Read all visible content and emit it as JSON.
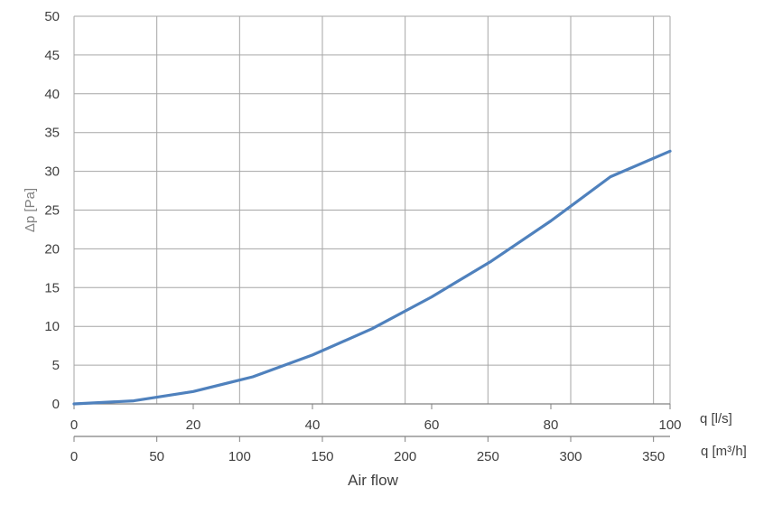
{
  "chart_data": {
    "type": "line",
    "title": "",
    "ylabel": "Δp [Pa]",
    "xlabel": "Air flow",
    "ylim": [
      0,
      50
    ],
    "yticks": [
      0,
      5,
      10,
      15,
      20,
      25,
      30,
      35,
      40,
      45,
      50
    ],
    "grid": true,
    "x_axes": [
      {
        "unit_label": "q [l/s]",
        "range": [
          0,
          100
        ],
        "ticks": [
          0,
          20,
          40,
          60,
          80,
          100
        ]
      },
      {
        "unit_label": "q [m³/h]",
        "range": [
          0,
          360
        ],
        "ticks": [
          0,
          50,
          100,
          150,
          200,
          250,
          300,
          350
        ]
      }
    ],
    "series": [
      {
        "color": "#4f81bd",
        "x": [
          0,
          10,
          20,
          30,
          40,
          50,
          60,
          70,
          80,
          90,
          100
        ],
        "y": [
          0,
          0.4,
          1.6,
          3.5,
          6.3,
          9.7,
          13.8,
          18.4,
          23.6,
          29.3,
          32.6
        ]
      }
    ]
  }
}
